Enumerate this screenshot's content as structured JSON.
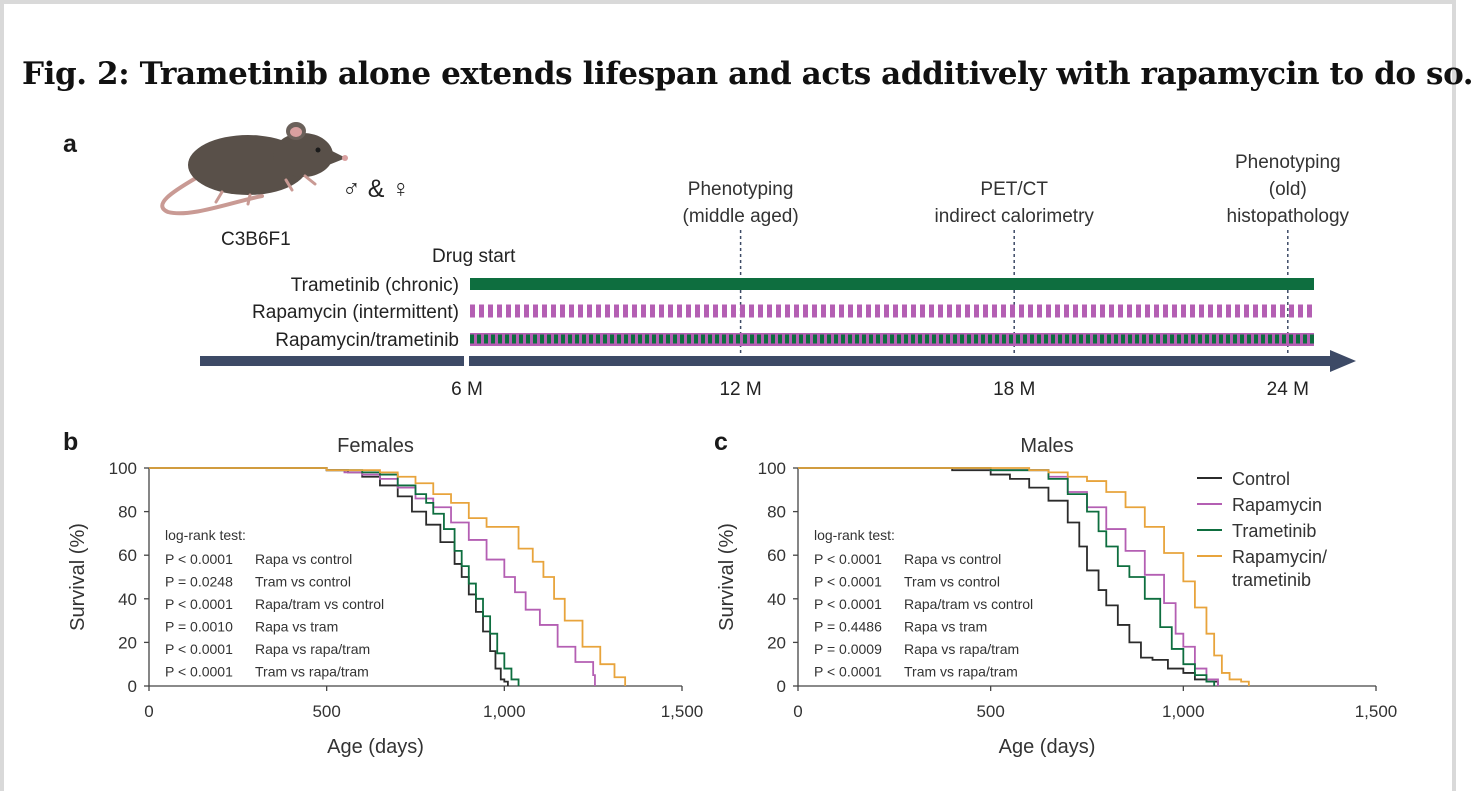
{
  "figure": {
    "title": "Fig. 2: Trametinib alone extends lifespan and acts additively with rapamycin to do so.",
    "panel_a_letter": "a",
    "panel_b_letter": "b",
    "panel_c_letter": "c"
  },
  "colors": {
    "control": "#2b2b2b",
    "rapamycin": "#b45fb3",
    "trametinib": "#0e6e3f",
    "combo": "#e8a43c",
    "timeline": "#3d4a66",
    "axis": "#444444"
  },
  "chart_data": [
    {
      "type": "timeline",
      "mouse_icon": "mouse-icon",
      "strain": "C3B6F1",
      "sexes": "♂ & ♀",
      "drug_start_label": "Drug start",
      "treatments": [
        {
          "label": "Trametinib (chronic)",
          "pattern": "solid",
          "color": "#0e6e3f"
        },
        {
          "label": "Rapamycin (intermittent)",
          "pattern": "dashed",
          "color": "#b45fb3"
        },
        {
          "label": "Rapamycin/trametinib",
          "pattern": "alternating",
          "color": "#0e6e3f",
          "color2": "#b45fb3"
        }
      ],
      "ticks": [
        {
          "label": "6 M",
          "month": 6
        },
        {
          "label": "12 M",
          "month": 12
        },
        {
          "label": "18 M",
          "month": 18
        },
        {
          "label": "24 M",
          "month": 24
        }
      ],
      "timepoints": [
        {
          "month": 12,
          "lines": [
            "Phenotyping",
            "(middle aged)"
          ]
        },
        {
          "month": 18,
          "lines": [
            "PET/CT",
            "indirect calorimetry"
          ]
        },
        {
          "month": 24,
          "lines": [
            "Phenotyping",
            "(old)",
            "histopathology"
          ]
        }
      ]
    },
    {
      "type": "line",
      "step": true,
      "title": "Females",
      "xlabel": "Age (days)",
      "ylabel": "Survival (%)",
      "xlim": [
        0,
        1500
      ],
      "ylim": [
        0,
        100
      ],
      "xticks": [
        0,
        500,
        1000,
        1500
      ],
      "xtick_labels": [
        "0",
        "500",
        "1,000",
        "1,500"
      ],
      "yticks": [
        0,
        20,
        40,
        60,
        80,
        100
      ],
      "ytick_labels": [
        "0",
        "20",
        "40",
        "60",
        "80",
        "100"
      ],
      "stats_header": "log-rank test:",
      "stats": [
        {
          "p": "P < 0.0001",
          "comparison": "Rapa vs control"
        },
        {
          "p": "P = 0.0248",
          "comparison": "Tram vs control"
        },
        {
          "p": "P < 0.0001",
          "comparison": "Rapa/tram vs control"
        },
        {
          "p": "P = 0.0010",
          "comparison": "Rapa vs tram"
        },
        {
          "p": "P < 0.0001",
          "comparison": "Rapa vs rapa/tram"
        },
        {
          "p": "P < 0.0001",
          "comparison": "Tram vs rapa/tram"
        }
      ],
      "series": [
        {
          "name": "Control",
          "color": "#2b2b2b",
          "points": [
            [
              0,
              100
            ],
            [
              350,
              100
            ],
            [
              500,
              99
            ],
            [
              560,
              98
            ],
            [
              600,
              96
            ],
            [
              650,
              92
            ],
            [
              700,
              87
            ],
            [
              740,
              80
            ],
            [
              780,
              74
            ],
            [
              820,
              66
            ],
            [
              860,
              56
            ],
            [
              880,
              50
            ],
            [
              900,
              42
            ],
            [
              920,
              34
            ],
            [
              940,
              25
            ],
            [
              960,
              16
            ],
            [
              975,
              8
            ],
            [
              990,
              3
            ],
            [
              1000,
              2
            ],
            [
              1010,
              0
            ]
          ]
        },
        {
          "name": "Rapamycin",
          "color": "#b45fb3",
          "points": [
            [
              0,
              100
            ],
            [
              400,
              100
            ],
            [
              500,
              99
            ],
            [
              550,
              98
            ],
            [
              600,
              97
            ],
            [
              650,
              95
            ],
            [
              700,
              91
            ],
            [
              750,
              86
            ],
            [
              800,
              82
            ],
            [
              850,
              75
            ],
            [
              900,
              67
            ],
            [
              950,
              58
            ],
            [
              1000,
              50
            ],
            [
              1030,
              43
            ],
            [
              1060,
              35
            ],
            [
              1100,
              28
            ],
            [
              1150,
              18
            ],
            [
              1200,
              11
            ],
            [
              1250,
              5
            ],
            [
              1255,
              0
            ]
          ]
        },
        {
          "name": "Trametinib",
          "color": "#0e6e3f",
          "points": [
            [
              0,
              100
            ],
            [
              400,
              100
            ],
            [
              500,
              99
            ],
            [
              600,
              98
            ],
            [
              650,
              97
            ],
            [
              700,
              92
            ],
            [
              750,
              88
            ],
            [
              780,
              84
            ],
            [
              800,
              79
            ],
            [
              830,
              72
            ],
            [
              860,
              62
            ],
            [
              880,
              55
            ],
            [
              900,
              47
            ],
            [
              920,
              40
            ],
            [
              940,
              32
            ],
            [
              960,
              24
            ],
            [
              980,
              15
            ],
            [
              1000,
              8
            ],
            [
              1020,
              3
            ],
            [
              1040,
              0
            ]
          ]
        },
        {
          "name": "Rapamycin/trametinib",
          "color": "#e8a43c",
          "points": [
            [
              0,
              100
            ],
            [
              400,
              100
            ],
            [
              500,
              99
            ],
            [
              580,
              99
            ],
            [
              650,
              98
            ],
            [
              700,
              96
            ],
            [
              750,
              93
            ],
            [
              800,
              88
            ],
            [
              850,
              84
            ],
            [
              900,
              77
            ],
            [
              950,
              73
            ],
            [
              1000,
              73
            ],
            [
              1040,
              63
            ],
            [
              1080,
              57
            ],
            [
              1110,
              50
            ],
            [
              1140,
              40
            ],
            [
              1170,
              30
            ],
            [
              1220,
              18
            ],
            [
              1270,
              10
            ],
            [
              1310,
              4
            ],
            [
              1340,
              0
            ]
          ]
        }
      ]
    },
    {
      "type": "line",
      "step": true,
      "title": "Males",
      "xlabel": "Age (days)",
      "ylabel": "Survival (%)",
      "xlim": [
        0,
        1500
      ],
      "ylim": [
        0,
        100
      ],
      "xticks": [
        0,
        500,
        1000,
        1500
      ],
      "xtick_labels": [
        "0",
        "500",
        "1,000",
        "1,500"
      ],
      "yticks": [
        0,
        20,
        40,
        60,
        80,
        100
      ],
      "ytick_labels": [
        "0",
        "20",
        "40",
        "60",
        "80",
        "100"
      ],
      "legend": "top-right",
      "stats_header": "log-rank test:",
      "stats": [
        {
          "p": "P < 0.0001",
          "comparison": "Rapa vs control"
        },
        {
          "p": "P < 0.0001",
          "comparison": "Tram vs control"
        },
        {
          "p": "P < 0.0001",
          "comparison": "Rapa/tram vs control"
        },
        {
          "p": "P = 0.4486",
          "comparison": "Rapa vs tram"
        },
        {
          "p": "P = 0.0009",
          "comparison": "Rapa vs rapa/tram"
        },
        {
          "p": "P < 0.0001",
          "comparison": "Tram vs rapa/tram"
        }
      ],
      "series": [
        {
          "name": "Control",
          "color": "#2b2b2b",
          "points": [
            [
              0,
              100
            ],
            [
              300,
              100
            ],
            [
              400,
              99
            ],
            [
              500,
              97
            ],
            [
              550,
              95
            ],
            [
              600,
              91
            ],
            [
              650,
              85
            ],
            [
              700,
              75
            ],
            [
              730,
              64
            ],
            [
              750,
              53
            ],
            [
              780,
              44
            ],
            [
              800,
              37
            ],
            [
              830,
              28
            ],
            [
              860,
              20
            ],
            [
              890,
              13
            ],
            [
              920,
              12
            ],
            [
              960,
              8
            ],
            [
              1000,
              6
            ],
            [
              1030,
              3
            ],
            [
              1060,
              2
            ],
            [
              1090,
              0
            ]
          ]
        },
        {
          "name": "Rapamycin",
          "color": "#b45fb3",
          "points": [
            [
              0,
              100
            ],
            [
              400,
              100
            ],
            [
              500,
              99
            ],
            [
              600,
              99
            ],
            [
              650,
              96
            ],
            [
              700,
              89
            ],
            [
              750,
              82
            ],
            [
              800,
              72
            ],
            [
              850,
              62
            ],
            [
              900,
              51
            ],
            [
              950,
              38
            ],
            [
              980,
              24
            ],
            [
              1000,
              18
            ],
            [
              1030,
              8
            ],
            [
              1060,
              3
            ],
            [
              1090,
              0
            ]
          ]
        },
        {
          "name": "Trametinib",
          "color": "#0e6e3f",
          "points": [
            [
              0,
              100
            ],
            [
              400,
              100
            ],
            [
              500,
              99
            ],
            [
              600,
              99
            ],
            [
              650,
              95
            ],
            [
              700,
              88
            ],
            [
              750,
              80
            ],
            [
              780,
              71
            ],
            [
              800,
              64
            ],
            [
              830,
              55
            ],
            [
              860,
              50
            ],
            [
              900,
              40
            ],
            [
              940,
              27
            ],
            [
              970,
              17
            ],
            [
              1000,
              10
            ],
            [
              1030,
              5
            ],
            [
              1060,
              2
            ],
            [
              1080,
              0
            ]
          ]
        },
        {
          "name": "Rapamycin/trametinib",
          "color": "#e8a43c",
          "points": [
            [
              0,
              100
            ],
            [
              500,
              100
            ],
            [
              600,
              99
            ],
            [
              650,
              98
            ],
            [
              700,
              96
            ],
            [
              750,
              94
            ],
            [
              800,
              89
            ],
            [
              850,
              82
            ],
            [
              900,
              73
            ],
            [
              950,
              61
            ],
            [
              1000,
              48
            ],
            [
              1030,
              36
            ],
            [
              1060,
              24
            ],
            [
              1080,
              14
            ],
            [
              1100,
              6
            ],
            [
              1120,
              3
            ],
            [
              1150,
              2
            ],
            [
              1170,
              0
            ]
          ]
        }
      ]
    }
  ]
}
